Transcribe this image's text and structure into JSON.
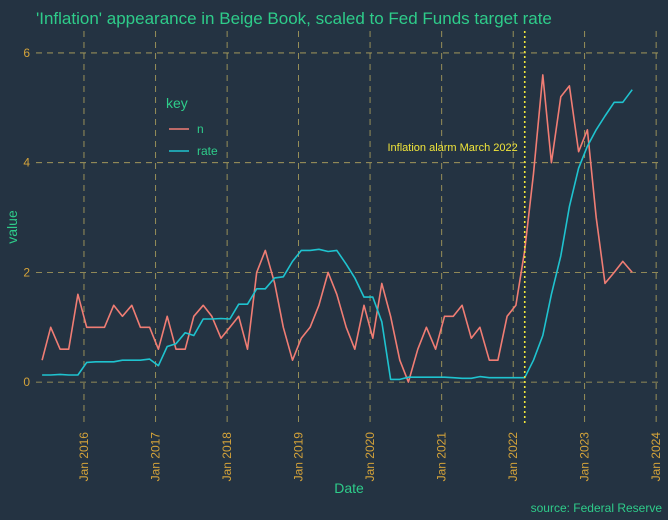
{
  "colors": {
    "background": "#243342",
    "grid": "#b3a55e",
    "title": "#2ecc8a",
    "tick": "#d4a33a",
    "n": "#f07d74",
    "rate": "#1fc3cf",
    "vline": "#f2e63a"
  },
  "chart_data": {
    "type": "line",
    "title": "'Inflation' appearance in Beige Book, scaled to Fed Funds target rate",
    "xlabel": "Date",
    "ylabel": "value",
    "caption": "source: Federal Reserve",
    "xlim": [
      "2015-05-01",
      "2024-01-31"
    ],
    "ylim": [
      -0.8,
      6.4
    ],
    "x_ticks": [
      "2016-01-01",
      "2017-01-01",
      "2018-01-01",
      "2019-01-01",
      "2020-01-01",
      "2021-01-01",
      "2022-01-01",
      "2023-01-01",
      "2024-01-01"
    ],
    "x_tick_labels": [
      "Jan 2016",
      "Jan 2017",
      "Jan 2018",
      "Jan 2019",
      "Jan 2020",
      "Jan 2021",
      "Jan 2022",
      "Jan 2023",
      "Jan 2024"
    ],
    "y_ticks": [
      0,
      2,
      4,
      6
    ],
    "y_tick_labels": [
      "0",
      "2",
      "4",
      "6"
    ],
    "grid": true,
    "legend": {
      "title": "key",
      "placement": "top-left"
    },
    "annotation": {
      "x": "2022-03-01",
      "text": "Inflation alarm March 2022"
    },
    "series": [
      {
        "name": "n",
        "color": "#f07d74",
        "points": [
          [
            "2015-06-01",
            0.4
          ],
          [
            "2015-07-15",
            1.0
          ],
          [
            "2015-09-01",
            0.6
          ],
          [
            "2015-10-15",
            0.6
          ],
          [
            "2015-12-01",
            1.6
          ],
          [
            "2016-01-15",
            1.0
          ],
          [
            "2016-03-01",
            1.0
          ],
          [
            "2016-04-15",
            1.0
          ],
          [
            "2016-06-01",
            1.4
          ],
          [
            "2016-07-15",
            1.2
          ],
          [
            "2016-09-01",
            1.4
          ],
          [
            "2016-10-15",
            1.0
          ],
          [
            "2016-12-01",
            1.0
          ],
          [
            "2017-01-15",
            0.6
          ],
          [
            "2017-03-01",
            1.2
          ],
          [
            "2017-04-15",
            0.6
          ],
          [
            "2017-06-01",
            0.6
          ],
          [
            "2017-07-15",
            1.2
          ],
          [
            "2017-09-01",
            1.4
          ],
          [
            "2017-10-15",
            1.2
          ],
          [
            "2017-12-01",
            0.8
          ],
          [
            "2018-01-15",
            1.0
          ],
          [
            "2018-03-01",
            1.2
          ],
          [
            "2018-04-15",
            0.6
          ],
          [
            "2018-06-01",
            2.0
          ],
          [
            "2018-07-15",
            2.4
          ],
          [
            "2018-09-01",
            1.8
          ],
          [
            "2018-10-15",
            1.0
          ],
          [
            "2018-12-01",
            0.4
          ],
          [
            "2019-01-15",
            0.8
          ],
          [
            "2019-03-01",
            1.0
          ],
          [
            "2019-04-15",
            1.4
          ],
          [
            "2019-06-01",
            2.0
          ],
          [
            "2019-07-15",
            1.6
          ],
          [
            "2019-09-01",
            1.0
          ],
          [
            "2019-10-15",
            0.6
          ],
          [
            "2019-12-01",
            1.4
          ],
          [
            "2020-01-15",
            0.8
          ],
          [
            "2020-03-01",
            1.8
          ],
          [
            "2020-04-15",
            1.2
          ],
          [
            "2020-06-01",
            0.4
          ],
          [
            "2020-07-15",
            0.0
          ],
          [
            "2020-09-01",
            0.6
          ],
          [
            "2020-10-15",
            1.0
          ],
          [
            "2020-12-01",
            0.6
          ],
          [
            "2021-01-15",
            1.2
          ],
          [
            "2021-03-01",
            1.2
          ],
          [
            "2021-04-15",
            1.4
          ],
          [
            "2021-06-01",
            0.8
          ],
          [
            "2021-07-15",
            1.0
          ],
          [
            "2021-09-01",
            0.4
          ],
          [
            "2021-10-15",
            0.4
          ],
          [
            "2021-12-01",
            1.2
          ],
          [
            "2022-01-15",
            1.4
          ],
          [
            "2022-03-01",
            2.4
          ],
          [
            "2022-04-15",
            3.8
          ],
          [
            "2022-06-01",
            5.6
          ],
          [
            "2022-07-15",
            4.0
          ],
          [
            "2022-09-01",
            5.2
          ],
          [
            "2022-10-15",
            5.4
          ],
          [
            "2022-12-01",
            4.2
          ],
          [
            "2023-01-15",
            4.6
          ],
          [
            "2023-03-01",
            3.0
          ],
          [
            "2023-04-15",
            1.8
          ],
          [
            "2023-06-01",
            2.0
          ],
          [
            "2023-07-15",
            2.2
          ],
          [
            "2023-09-01",
            2.0
          ]
        ]
      },
      {
        "name": "rate",
        "color": "#1fc3cf",
        "points": [
          [
            "2015-06-01",
            0.13
          ],
          [
            "2015-07-15",
            0.13
          ],
          [
            "2015-09-01",
            0.14
          ],
          [
            "2015-10-15",
            0.13
          ],
          [
            "2015-12-01",
            0.13
          ],
          [
            "2016-01-15",
            0.36
          ],
          [
            "2016-03-01",
            0.37
          ],
          [
            "2016-04-15",
            0.37
          ],
          [
            "2016-06-01",
            0.37
          ],
          [
            "2016-07-15",
            0.4
          ],
          [
            "2016-09-01",
            0.4
          ],
          [
            "2016-10-15",
            0.4
          ],
          [
            "2016-12-01",
            0.42
          ],
          [
            "2017-01-15",
            0.3
          ],
          [
            "2017-03-01",
            0.65
          ],
          [
            "2017-04-15",
            0.7
          ],
          [
            "2017-06-01",
            0.9
          ],
          [
            "2017-07-15",
            0.85
          ],
          [
            "2017-09-01",
            1.15
          ],
          [
            "2017-10-15",
            1.15
          ],
          [
            "2017-12-01",
            1.16
          ],
          [
            "2018-01-15",
            1.15
          ],
          [
            "2018-03-01",
            1.42
          ],
          [
            "2018-04-15",
            1.42
          ],
          [
            "2018-06-01",
            1.7
          ],
          [
            "2018-07-15",
            1.7
          ],
          [
            "2018-09-01",
            1.9
          ],
          [
            "2018-10-15",
            1.92
          ],
          [
            "2018-12-01",
            2.2
          ],
          [
            "2019-01-15",
            2.4
          ],
          [
            "2019-03-01",
            2.4
          ],
          [
            "2019-04-15",
            2.42
          ],
          [
            "2019-06-01",
            2.38
          ],
          [
            "2019-07-15",
            2.4
          ],
          [
            "2019-09-01",
            2.15
          ],
          [
            "2019-10-15",
            1.9
          ],
          [
            "2019-12-01",
            1.55
          ],
          [
            "2020-01-15",
            1.55
          ],
          [
            "2020-03-01",
            1.1
          ],
          [
            "2020-04-15",
            0.05
          ],
          [
            "2020-06-01",
            0.05
          ],
          [
            "2020-07-15",
            0.09
          ],
          [
            "2020-09-01",
            0.09
          ],
          [
            "2020-10-15",
            0.09
          ],
          [
            "2020-12-01",
            0.09
          ],
          [
            "2021-01-15",
            0.09
          ],
          [
            "2021-03-01",
            0.08
          ],
          [
            "2021-04-15",
            0.07
          ],
          [
            "2021-06-01",
            0.07
          ],
          [
            "2021-07-15",
            0.1
          ],
          [
            "2021-09-01",
            0.08
          ],
          [
            "2021-10-15",
            0.08
          ],
          [
            "2021-12-01",
            0.08
          ],
          [
            "2022-01-15",
            0.08
          ],
          [
            "2022-03-01",
            0.08
          ],
          [
            "2022-04-15",
            0.4
          ],
          [
            "2022-06-01",
            0.85
          ],
          [
            "2022-07-15",
            1.6
          ],
          [
            "2022-09-01",
            2.3
          ],
          [
            "2022-10-15",
            3.2
          ],
          [
            "2022-12-01",
            3.9
          ],
          [
            "2023-01-15",
            4.3
          ],
          [
            "2023-03-01",
            4.6
          ],
          [
            "2023-04-15",
            4.85
          ],
          [
            "2023-06-01",
            5.1
          ],
          [
            "2023-07-15",
            5.1
          ],
          [
            "2023-09-01",
            5.33
          ]
        ]
      }
    ]
  }
}
